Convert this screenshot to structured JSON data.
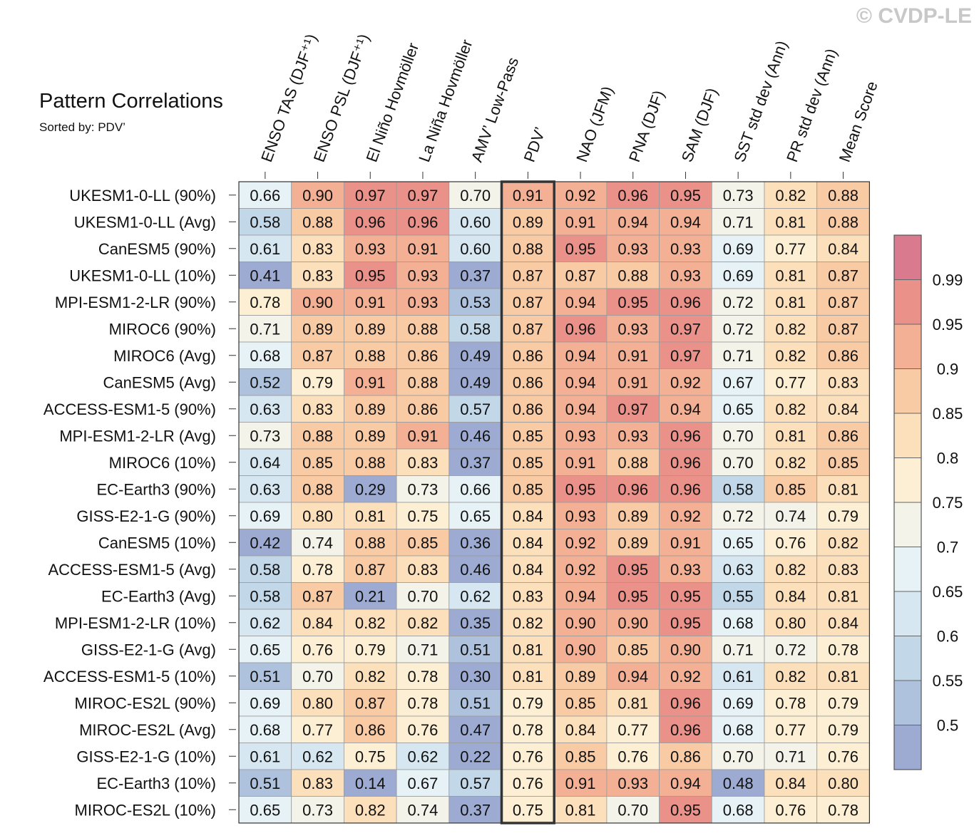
{
  "header": {
    "title": "Pattern Correlations",
    "subtitle": "Sorted by: PDV’",
    "watermark": "© CVDP-LE"
  },
  "chart_data": {
    "type": "heatmap",
    "title": "Pattern Correlations",
    "subtitle": "Sorted by: PDV’",
    "highlighted_column": "PDV’",
    "columns": [
      "ENSO TAS (DJF⁺¹)",
      "ENSO PSL (DJF⁺¹)",
      "El Niño Hovmöller",
      "La Niña Hovmöller",
      "AMV’ Low-Pass",
      "PDV’",
      "NAO (JFM)",
      "PNA (DJF)",
      "SAM (DJF)",
      "SST std dev (Ann)",
      "PR std dev (Ann)",
      "Mean Score"
    ],
    "rows": [
      {
        "label": "UKESM1-0-LL (90%)",
        "values": [
          0.66,
          0.9,
          0.97,
          0.97,
          0.7,
          0.91,
          0.92,
          0.96,
          0.95,
          0.73,
          0.82,
          0.88
        ]
      },
      {
        "label": "UKESM1-0-LL (Avg)",
        "values": [
          0.58,
          0.88,
          0.96,
          0.96,
          0.6,
          0.89,
          0.91,
          0.94,
          0.94,
          0.71,
          0.81,
          0.88
        ]
      },
      {
        "label": "CanESM5 (90%)",
        "values": [
          0.61,
          0.83,
          0.93,
          0.91,
          0.6,
          0.88,
          0.95,
          0.93,
          0.93,
          0.69,
          0.77,
          0.84
        ]
      },
      {
        "label": "UKESM1-0-LL (10%)",
        "values": [
          0.41,
          0.83,
          0.95,
          0.93,
          0.37,
          0.87,
          0.87,
          0.88,
          0.93,
          0.69,
          0.81,
          0.87
        ]
      },
      {
        "label": "MPI-ESM1-2-LR (90%)",
        "values": [
          0.78,
          0.9,
          0.91,
          0.93,
          0.53,
          0.87,
          0.94,
          0.95,
          0.96,
          0.72,
          0.81,
          0.87
        ]
      },
      {
        "label": "MIROC6 (90%)",
        "values": [
          0.71,
          0.89,
          0.89,
          0.88,
          0.58,
          0.87,
          0.96,
          0.93,
          0.97,
          0.72,
          0.82,
          0.87
        ]
      },
      {
        "label": "MIROC6 (Avg)",
        "values": [
          0.68,
          0.87,
          0.88,
          0.86,
          0.49,
          0.86,
          0.94,
          0.91,
          0.97,
          0.71,
          0.82,
          0.86
        ]
      },
      {
        "label": "CanESM5 (Avg)",
        "values": [
          0.52,
          0.79,
          0.91,
          0.88,
          0.49,
          0.86,
          0.94,
          0.91,
          0.92,
          0.67,
          0.77,
          0.83
        ]
      },
      {
        "label": "ACCESS-ESM1-5 (90%)",
        "values": [
          0.63,
          0.83,
          0.89,
          0.86,
          0.57,
          0.86,
          0.94,
          0.97,
          0.94,
          0.65,
          0.82,
          0.84
        ]
      },
      {
        "label": "MPI-ESM1-2-LR (Avg)",
        "values": [
          0.73,
          0.88,
          0.89,
          0.91,
          0.46,
          0.85,
          0.93,
          0.93,
          0.96,
          0.7,
          0.81,
          0.86
        ]
      },
      {
        "label": "MIROC6 (10%)",
        "values": [
          0.64,
          0.85,
          0.88,
          0.83,
          0.37,
          0.85,
          0.91,
          0.88,
          0.96,
          0.7,
          0.82,
          0.85
        ]
      },
      {
        "label": "EC-Earth3 (90%)",
        "values": [
          0.63,
          0.88,
          0.29,
          0.73,
          0.66,
          0.85,
          0.95,
          0.96,
          0.96,
          0.58,
          0.85,
          0.81
        ]
      },
      {
        "label": "GISS-E2-1-G (90%)",
        "values": [
          0.69,
          0.8,
          0.81,
          0.75,
          0.65,
          0.84,
          0.93,
          0.89,
          0.92,
          0.72,
          0.74,
          0.79
        ]
      },
      {
        "label": "CanESM5 (10%)",
        "values": [
          0.42,
          0.74,
          0.88,
          0.85,
          0.36,
          0.84,
          0.92,
          0.89,
          0.91,
          0.65,
          0.76,
          0.82
        ]
      },
      {
        "label": "ACCESS-ESM1-5 (Avg)",
        "values": [
          0.58,
          0.78,
          0.87,
          0.83,
          0.46,
          0.84,
          0.92,
          0.95,
          0.93,
          0.63,
          0.82,
          0.83
        ]
      },
      {
        "label": "EC-Earth3 (Avg)",
        "values": [
          0.58,
          0.87,
          0.21,
          0.7,
          0.62,
          0.83,
          0.94,
          0.95,
          0.95,
          0.55,
          0.84,
          0.81
        ]
      },
      {
        "label": "MPI-ESM1-2-LR (10%)",
        "values": [
          0.62,
          0.84,
          0.82,
          0.82,
          0.35,
          0.82,
          0.9,
          0.9,
          0.95,
          0.68,
          0.8,
          0.84
        ]
      },
      {
        "label": "GISS-E2-1-G (Avg)",
        "values": [
          0.65,
          0.76,
          0.79,
          0.71,
          0.51,
          0.81,
          0.9,
          0.85,
          0.9,
          0.71,
          0.72,
          0.78
        ]
      },
      {
        "label": "ACCESS-ESM1-5 (10%)",
        "values": [
          0.51,
          0.7,
          0.82,
          0.78,
          0.3,
          0.81,
          0.89,
          0.94,
          0.92,
          0.61,
          0.82,
          0.81
        ]
      },
      {
        "label": "MIROC-ES2L (90%)",
        "values": [
          0.69,
          0.8,
          0.87,
          0.78,
          0.51,
          0.79,
          0.85,
          0.81,
          0.96,
          0.69,
          0.78,
          0.79
        ]
      },
      {
        "label": "MIROC-ES2L (Avg)",
        "values": [
          0.68,
          0.77,
          0.86,
          0.76,
          0.47,
          0.78,
          0.84,
          0.77,
          0.96,
          0.68,
          0.77,
          0.79
        ]
      },
      {
        "label": "GISS-E2-1-G (10%)",
        "values": [
          0.61,
          0.62,
          0.75,
          0.62,
          0.22,
          0.76,
          0.85,
          0.76,
          0.86,
          0.7,
          0.71,
          0.76
        ]
      },
      {
        "label": "EC-Earth3 (10%)",
        "values": [
          0.51,
          0.83,
          0.14,
          0.67,
          0.57,
          0.76,
          0.91,
          0.93,
          0.94,
          0.48,
          0.84,
          0.8
        ]
      },
      {
        "label": "MIROC-ES2L (10%)",
        "values": [
          0.65,
          0.73,
          0.82,
          0.74,
          0.37,
          0.75,
          0.81,
          0.7,
          0.95,
          0.68,
          0.76,
          0.78
        ]
      }
    ],
    "colorbar": {
      "levels": [
        0.5,
        0.55,
        0.6,
        0.65,
        0.7,
        0.75,
        0.8,
        0.85,
        0.9,
        0.95,
        0.99
      ],
      "labels": [
        "0.5",
        "0.55",
        "0.6",
        "0.65",
        "0.7",
        "0.75",
        "0.8",
        "0.85",
        "0.9",
        "0.95",
        "0.99"
      ],
      "colors": [
        "#9dabd3",
        "#afc2dd",
        "#c2d7e8",
        "#d6e7f1",
        "#e7f2f6",
        "#f3f3e9",
        "#fcefd3",
        "#fce0bb",
        "#f9cba5",
        "#f3b094",
        "#ea9189",
        "#d97a8f"
      ]
    }
  }
}
